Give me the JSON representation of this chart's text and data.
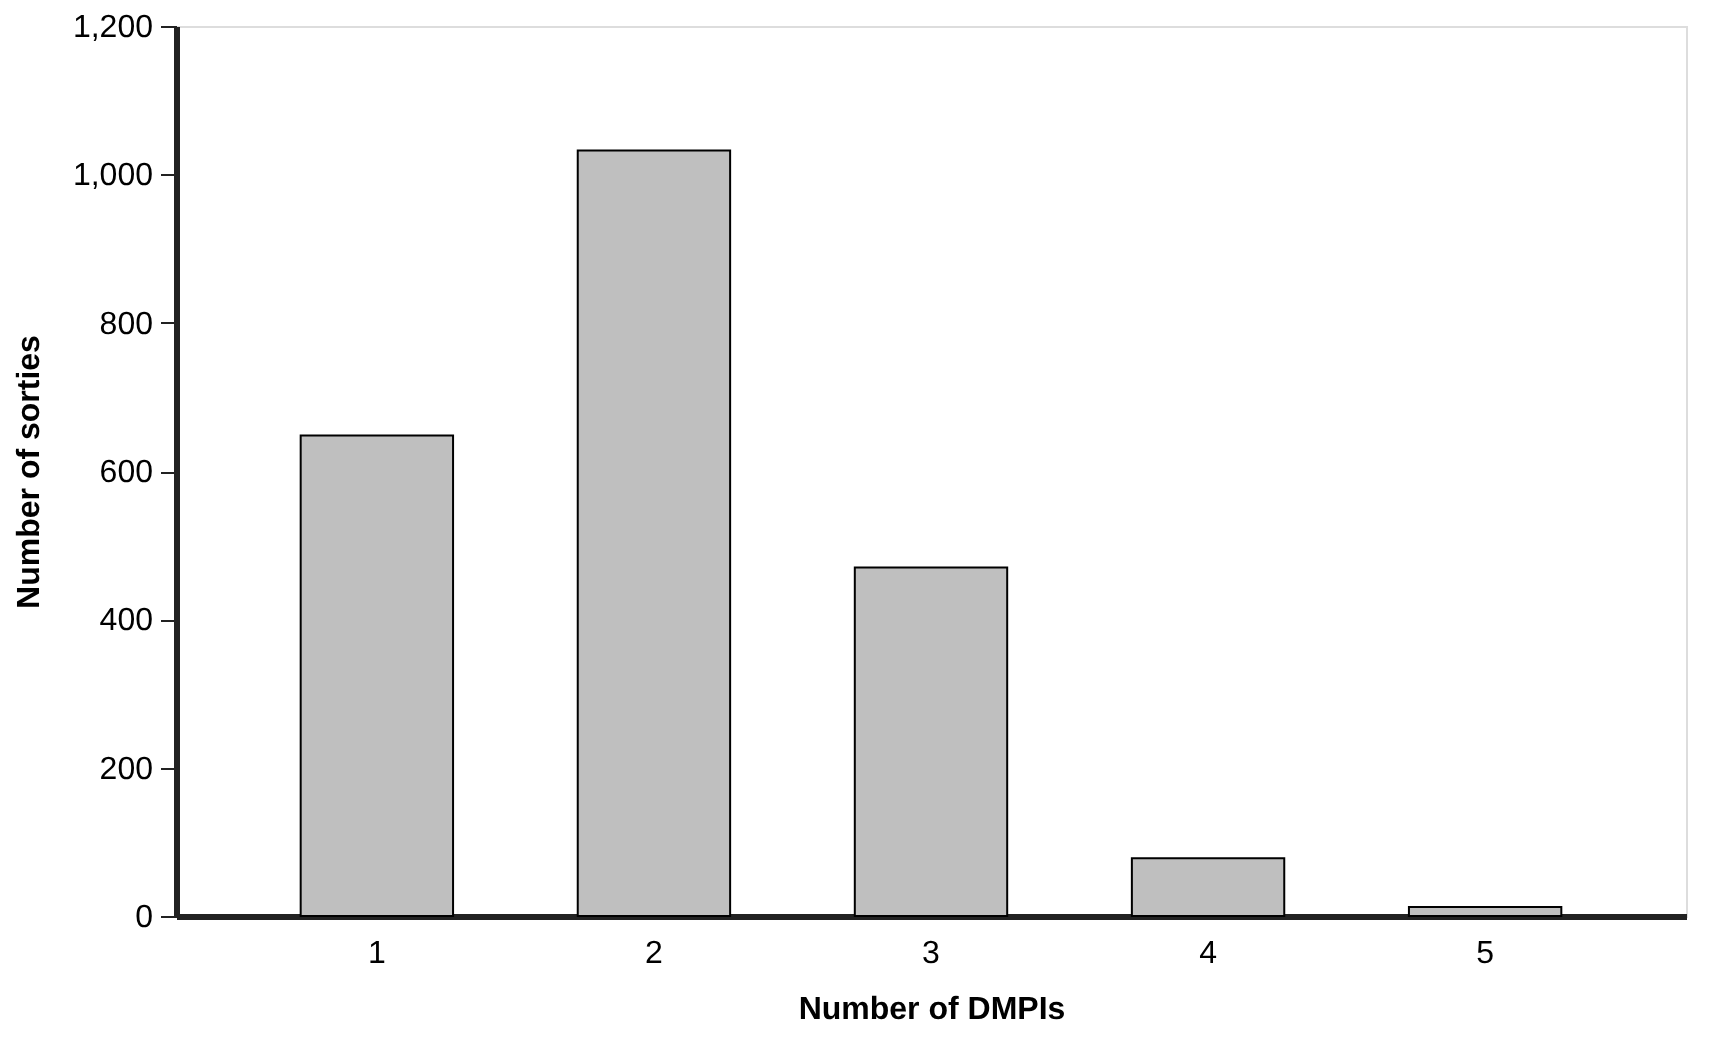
{
  "chart_data": {
    "type": "bar",
    "xlabel": "Number of DMPIs",
    "ylabel": "Number of sorties",
    "categories": [
      "1",
      "2",
      "3",
      "4",
      "5"
    ],
    "values": [
      648,
      1032,
      470,
      78,
      12
    ],
    "color": "#bfbfbf",
    "ylim": [
      0,
      1200
    ],
    "yticks": [
      0,
      200,
      400,
      600,
      800,
      {
        "value": 1000,
        "label": "1,000"
      },
      {
        "value": 1200,
        "label": "1,200"
      }
    ],
    "grid": false
  }
}
